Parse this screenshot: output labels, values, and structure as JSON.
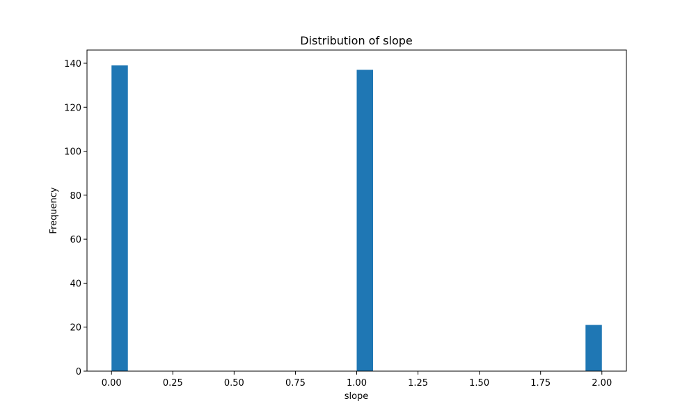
{
  "chart_data": {
    "type": "bar",
    "title": "Distribution of slope",
    "xlabel": "slope",
    "ylabel": "Frequency",
    "xlim": [
      -0.1,
      2.1
    ],
    "ylim": [
      0,
      146
    ],
    "xticks": [
      0.0,
      0.25,
      0.5,
      0.75,
      1.0,
      1.25,
      1.5,
      1.75,
      2.0
    ],
    "xtick_labels": [
      "0.00",
      "0.25",
      "0.50",
      "0.75",
      "1.00",
      "1.25",
      "1.50",
      "1.75",
      "2.00"
    ],
    "yticks": [
      0,
      20,
      40,
      60,
      80,
      100,
      120,
      140
    ],
    "ytick_labels": [
      "0",
      "20",
      "40",
      "60",
      "80",
      "100",
      "120",
      "140"
    ],
    "bin_width": 0.0667,
    "bars": [
      {
        "x_start": 0.0,
        "x_end": 0.0667,
        "value": 139
      },
      {
        "x_start": 1.0,
        "x_end": 1.0667,
        "value": 137
      },
      {
        "x_start": 1.9333,
        "x_end": 2.0,
        "value": 21
      }
    ],
    "bar_color": "#1f77b4",
    "grid": false,
    "legend": "none"
  }
}
